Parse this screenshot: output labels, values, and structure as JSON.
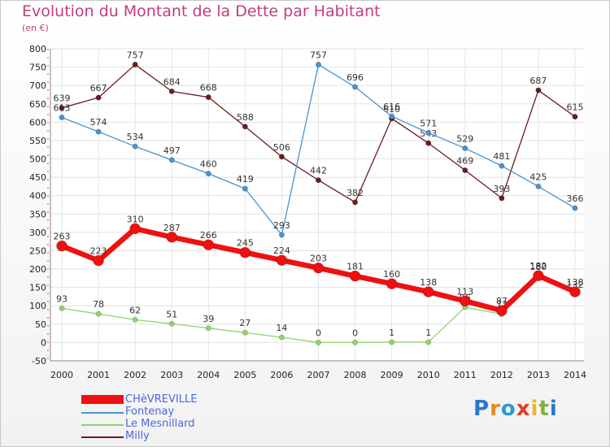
{
  "title": "Evolution du Montant de la Dette par Habitant",
  "subtitle": "(en €)",
  "logo": {
    "letters": [
      "P",
      "r",
      "o",
      "x",
      "i",
      "t",
      "i"
    ],
    "colors": [
      "#2a77c9",
      "#e8891e",
      "#2a9bd6",
      "#e33d2c",
      "#f1b52a",
      "#7fb33d",
      "#2a77c9"
    ]
  },
  "chart_data": {
    "type": "line",
    "title": "Evolution du Montant de la Dette par Habitant",
    "ylabel": "(en €)",
    "xlabel": "",
    "categories": [
      "2000",
      "2001",
      "2002",
      "2003",
      "2004",
      "2005",
      "2006",
      "2007",
      "2008",
      "2009",
      "2010",
      "2011",
      "2012",
      "2013",
      "2014"
    ],
    "ylim": [
      -50,
      800
    ],
    "yticks": [
      "-50",
      "0",
      "50",
      "100",
      "150",
      "200",
      "250",
      "300",
      "350",
      "400",
      "450",
      "500",
      "550",
      "600",
      "650",
      "700",
      "750",
      "800"
    ],
    "grid": true,
    "legend_position": "bottom-left",
    "series": [
      {
        "name": "Milly",
        "color": "#6b1a1e",
        "values": [
          639,
          667,
          757,
          684,
          668,
          588,
          506,
          442,
          382,
          610,
          543,
          469,
          393,
          687,
          615
        ],
        "labels": [
          "639",
          "667",
          "757",
          "684",
          "668",
          "588",
          "506",
          "442",
          "382",
          "610",
          "543",
          "469",
          "393",
          "687",
          "615"
        ]
      },
      {
        "name": "Fontenay",
        "color": "#4a93d0",
        "values": [
          613,
          574,
          534,
          497,
          460,
          419,
          293,
          757,
          696,
          616,
          571,
          529,
          481,
          425,
          366
        ],
        "labels": [
          "613",
          "574",
          "534",
          "497",
          "460",
          "419",
          "293",
          "757",
          "696",
          "616",
          "571",
          "529",
          "481",
          "425",
          "366"
        ]
      },
      {
        "name": "Le Mesnillard",
        "color": "#8fd36a",
        "values": [
          93,
          78,
          62,
          51,
          39,
          27,
          14,
          0,
          0,
          1,
          1,
          96,
          77,
          180,
          132
        ],
        "labels": [
          "93",
          "78",
          "62",
          "51",
          "39",
          "27",
          "14",
          "0",
          "0",
          "1",
          "1",
          "96",
          "77",
          "180",
          "132"
        ]
      },
      {
        "name": "CHèVREVILLE",
        "color": "#ee1111",
        "values": [
          263,
          223,
          310,
          287,
          266,
          245,
          224,
          203,
          181,
          160,
          138,
          113,
          87,
          182,
          138
        ],
        "labels": [
          "263",
          "223",
          "310",
          "287",
          "266",
          "245",
          "224",
          "203",
          "181",
          "160",
          "138",
          "113",
          "87",
          "182",
          "138"
        ]
      }
    ],
    "legend": [
      {
        "name": "CHèVREVILLE",
        "color": "#ee1111"
      },
      {
        "name": "Fontenay",
        "color": "#4a93d0"
      },
      {
        "name": "Le Mesnillard",
        "color": "#8fd36a"
      },
      {
        "name": "Milly",
        "color": "#6b1a1e"
      }
    ]
  }
}
